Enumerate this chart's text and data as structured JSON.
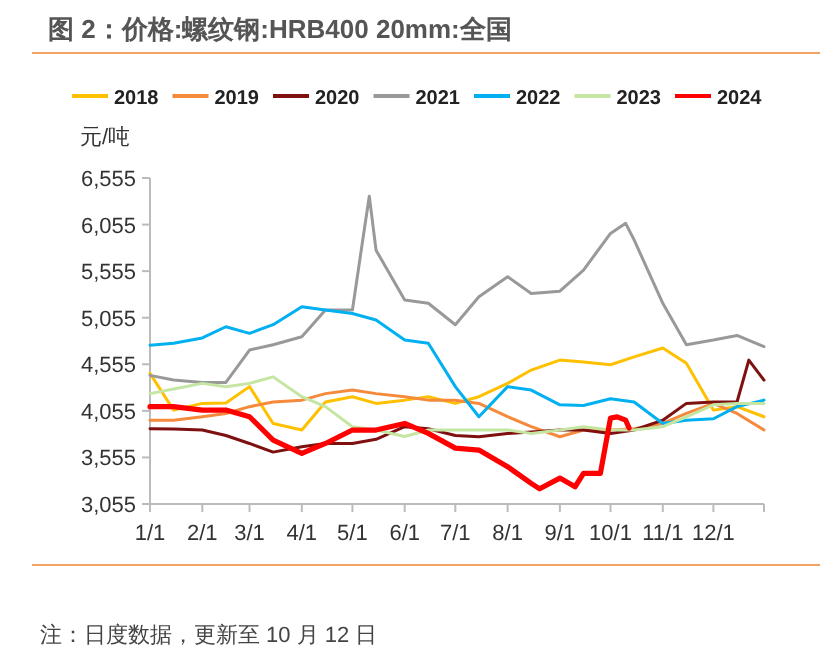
{
  "chart_data": {
    "type": "line",
    "title": "图 2：价格:螺纹钢:HRB400 20mm:全国",
    "ylabel": "元/吨",
    "annotations": [
      "注：日度数据，更新至 10 月 12 日"
    ],
    "legend": "top",
    "grid": false,
    "marker": "none",
    "x": [
      "--01-01",
      "--01-15",
      "--02-01",
      "--02-15",
      "--03-01",
      "--03-15",
      "--04-01",
      "--04-15",
      "--05-01",
      "--05-15",
      "--06-01",
      "--06-15",
      "--07-01",
      "--07-15",
      "--08-01",
      "--08-15",
      "--09-01",
      "--09-15",
      "--10-01",
      "--10-15",
      "--11-01",
      "--11-15",
      "--12-01",
      "--12-15",
      "--12-31"
    ],
    "xlim": [
      "--01-01",
      "--12-31"
    ],
    "xticks": [
      {
        "value": "--01-01",
        "label": "1/1"
      },
      {
        "value": "--02-01",
        "label": "2/1"
      },
      {
        "value": "--03-01",
        "label": "3/1"
      },
      {
        "value": "--04-01",
        "label": "4/1"
      },
      {
        "value": "--05-01",
        "label": "5/1"
      },
      {
        "value": "--06-01",
        "label": "6/1"
      },
      {
        "value": "--07-01",
        "label": "7/1"
      },
      {
        "value": "--08-01",
        "label": "8/1"
      },
      {
        "value": "--09-01",
        "label": "9/1"
      },
      {
        "value": "--10-01",
        "label": "10/1"
      },
      {
        "value": "--11-01",
        "label": "11/1"
      },
      {
        "value": "--12-01",
        "label": "12/1"
      }
    ],
    "ylim": [
      3055,
      6555
    ],
    "yticks": [
      {
        "value": 3055,
        "label": "3,055"
      },
      {
        "value": 3555,
        "label": "3,555"
      },
      {
        "value": 4055,
        "label": "4,055"
      },
      {
        "value": 4555,
        "label": "4,555"
      },
      {
        "value": 5055,
        "label": "5,055"
      },
      {
        "value": 5555,
        "label": "5,555"
      },
      {
        "value": 6055,
        "label": "6,055"
      },
      {
        "value": 6555,
        "label": "6,555"
      }
    ],
    "series": [
      {
        "name": "2018",
        "color": "#ffc000",
        "values": [
          4457,
          4063,
          4135,
          4140,
          4315,
          3920,
          3849,
          4150,
          4207,
          4135,
          4170,
          4207,
          4135,
          4207,
          4350,
          4493,
          4600,
          4580,
          4550,
          4635,
          4730,
          4565,
          4063,
          4100,
          3992
        ]
      },
      {
        "name": "2019",
        "color": "#f58a3c",
        "values": [
          3955,
          3955,
          3992,
          4027,
          4100,
          4150,
          4170,
          4240,
          4278,
          4240,
          4207,
          4170,
          4170,
          4135,
          3992,
          3885,
          3777,
          3849,
          3849,
          3863,
          3920,
          4027,
          4135,
          4027,
          3849
        ]
      },
      {
        "name": "2020",
        "color": "#7f1010",
        "x": [
          "--01-01",
          "--01-15",
          "--02-01",
          "--02-15",
          "--03-01",
          "--03-15",
          "--04-01",
          "--04-15",
          "--05-01",
          "--05-15",
          "--06-01",
          "--06-15",
          "--07-01",
          "--07-15",
          "--08-01",
          "--08-15",
          "--09-01",
          "--09-15",
          "--10-01",
          "--10-15",
          "--11-01",
          "--11-15",
          "--12-01",
          "--12-15",
          "--12-22",
          "--12-31"
        ],
        "values": [
          3863,
          3860,
          3849,
          3790,
          3705,
          3612,
          3670,
          3705,
          3705,
          3750,
          3885,
          3863,
          3790,
          3777,
          3813,
          3827,
          3849,
          3849,
          3813,
          3849,
          3955,
          4135,
          4150,
          4150,
          4600,
          4385
        ]
      },
      {
        "name": "2021",
        "color": "#999999",
        "x": [
          "--01-01",
          "--01-15",
          "--02-01",
          "--02-15",
          "--03-01",
          "--03-15",
          "--04-01",
          "--04-15",
          "--05-01",
          "--05-08",
          "--05-11",
          "--05-15",
          "--06-01",
          "--06-15",
          "--07-01",
          "--07-15",
          "--08-01",
          "--08-15",
          "--09-01",
          "--09-15",
          "--10-01",
          "--10-10",
          "--10-15",
          "--11-01",
          "--11-15",
          "--12-01",
          "--12-15",
          "--12-31"
        ],
        "values": [
          4436,
          4386,
          4360,
          4360,
          4708,
          4765,
          4850,
          5137,
          5137,
          5997,
          6360,
          5780,
          5245,
          5210,
          4980,
          5280,
          5495,
          5315,
          5340,
          5567,
          5960,
          6068,
          5890,
          5210,
          4765,
          4815,
          4865,
          4745
        ]
      },
      {
        "name": "2022",
        "color": "#00b0f0",
        "values": [
          4760,
          4780,
          4838,
          4958,
          4887,
          4980,
          5173,
          5137,
          5100,
          5030,
          4815,
          4780,
          4315,
          3992,
          4315,
          4278,
          4120,
          4113,
          4185,
          4150,
          3920,
          3955,
          3970,
          4100,
          4170
        ]
      },
      {
        "name": "2023",
        "color": "#c4e6a2",
        "values": [
          4240,
          4290,
          4350,
          4315,
          4350,
          4420,
          4207,
          4100,
          3885,
          3850,
          3780,
          3850,
          3849,
          3849,
          3849,
          3813,
          3849,
          3885,
          3849,
          3849,
          3885,
          3990,
          4120,
          4135,
          4135
        ]
      },
      {
        "name": "2024",
        "color": "#ff0000",
        "x": [
          "--01-01",
          "--01-15",
          "--02-01",
          "--02-15",
          "--03-01",
          "--03-15",
          "--04-01",
          "--04-15",
          "--05-01",
          "--05-15",
          "--06-01",
          "--06-15",
          "--07-01",
          "--07-15",
          "--08-01",
          "--08-15",
          "--08-20",
          "--09-01",
          "--09-10",
          "--09-15",
          "--09-25",
          "--10-01",
          "--10-05",
          "--10-10",
          "--10-12"
        ],
        "values": [
          4100,
          4100,
          4063,
          4063,
          3992,
          3740,
          3598,
          3705,
          3849,
          3849,
          3920,
          3813,
          3655,
          3634,
          3455,
          3276,
          3218,
          3333,
          3240,
          3383,
          3383,
          3978,
          3990,
          3955,
          3870
        ]
      }
    ]
  }
}
